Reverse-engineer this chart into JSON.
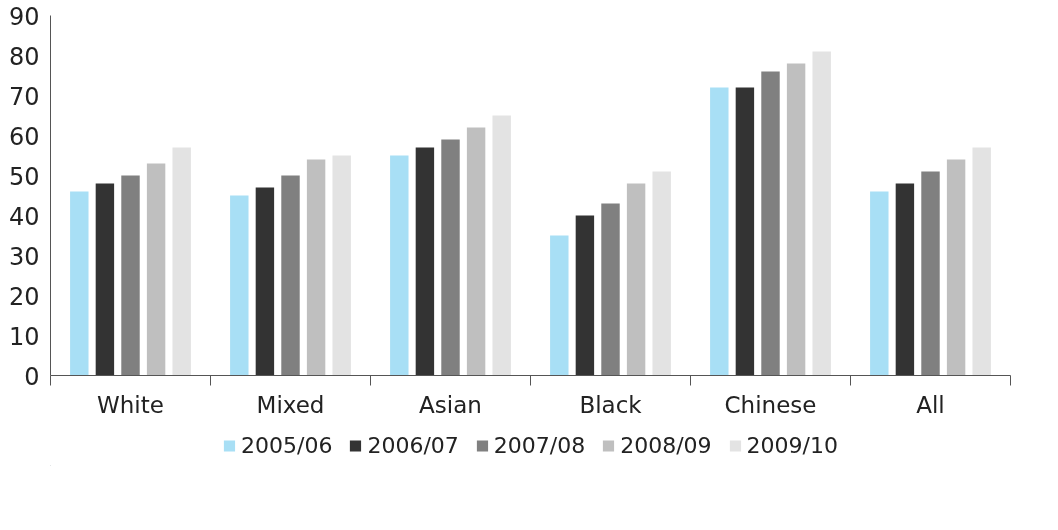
{
  "chart_data": {
    "type": "bar",
    "categories": [
      "White",
      "Mixed",
      "Asian",
      "Black",
      "Chinese",
      "All"
    ],
    "series": [
      {
        "name": "2005/06",
        "color": "#a8dff5",
        "values": [
          46,
          45,
          55,
          35,
          72,
          46
        ]
      },
      {
        "name": "2006/07",
        "color": "#333333",
        "values": [
          48,
          47,
          57,
          40,
          72,
          48
        ]
      },
      {
        "name": "2007/08",
        "color": "#808080",
        "values": [
          50,
          50,
          59,
          43,
          76,
          51
        ]
      },
      {
        "name": "2008/09",
        "color": "#bfbfbf",
        "values": [
          53,
          54,
          62,
          48,
          78,
          54
        ]
      },
      {
        "name": "2009/10",
        "color": "#e3e3e3",
        "values": [
          57,
          55,
          65,
          51,
          81,
          57
        ]
      }
    ],
    "ylim": [
      0,
      90
    ],
    "yticks": [
      0,
      10,
      20,
      30,
      40,
      50,
      60,
      70,
      80,
      90
    ],
    "grid": false,
    "legend": "bottom"
  }
}
